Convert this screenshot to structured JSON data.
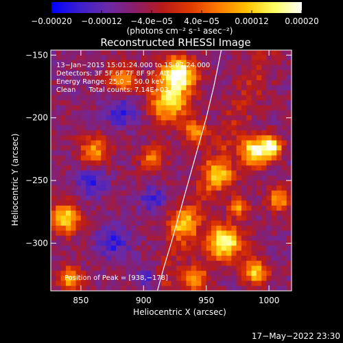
{
  "chart_data": {
    "type": "heatmap",
    "title": "Reconstructed RHESSI Image",
    "xlabel": "Heliocentric X (arcsec)",
    "ylabel": "Heliocentric Y (arcsec)",
    "xlim": [
      826,
      1018
    ],
    "ylim": [
      -338,
      -146
    ],
    "x_ticks": [
      850,
      900,
      950,
      1000
    ],
    "y_ticks": [
      -150,
      -200,
      -250,
      -300
    ],
    "x_tick_labels": [
      "850",
      "900",
      "950",
      "1000"
    ],
    "y_tick_labels": [
      "−150",
      "−200",
      "−250",
      "−300"
    ],
    "grid": false,
    "colorbar": {
      "range": [
        -0.0002,
        0.0002
      ],
      "ticks": [
        -0.0002,
        -0.00012,
        -4e-05,
        4e-05,
        0.00012,
        0.0002
      ],
      "tick_labels": [
        "−0.00020",
        "−0.00012",
        "−4.0e−05",
        "4.0e−05",
        "0.00012",
        "0.00020"
      ],
      "units": "(photons cm⁻² s⁻¹ asec⁻²)",
      "colors": [
        "#0000ff",
        "#3a1fcf",
        "#6a2aa6",
        "#8a1e6a",
        "#b81a1a",
        "#e03a00",
        "#ff7a00",
        "#ffc000",
        "#ffff60",
        "#ffffff"
      ]
    },
    "limb_curve": {
      "x": [
        911,
        916,
        922,
        929,
        936,
        943,
        950,
        956,
        962
      ],
      "y": [
        -338,
        -320,
        -300,
        -275,
        -250,
        -225,
        -200,
        -175,
        -146
      ]
    },
    "annotations": {
      "line1": "13−Jan−2015 15:01:24.000 to 15:07:24.000",
      "line2": "Detectors: 3F 5F 6F 7F 8F 9F, Att 0",
      "line3": "Energy Range: 25.0 − 50.0 keV",
      "line4": "Clean      Total counts: 7.14E+03",
      "peak": "Position of Peak = [938,−178]"
    }
  },
  "footer": {
    "timestamp": "17−May−2022 23:30"
  }
}
